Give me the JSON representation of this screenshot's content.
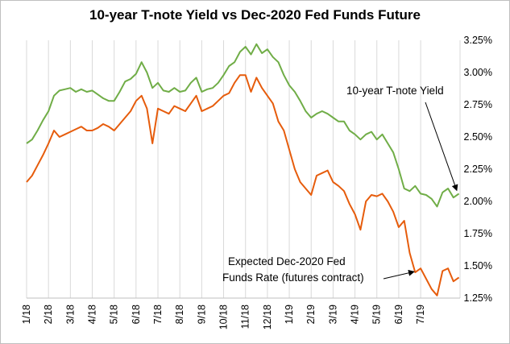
{
  "chart_data": {
    "type": "line",
    "title": "10-year T-note Yield vs Dec-2020 Fed Funds Future",
    "xlabel": "",
    "ylabel": "",
    "x_tick_labels": [
      "1/18",
      "2/18",
      "3/18",
      "4/18",
      "5/18",
      "6/18",
      "7/18",
      "8/18",
      "9/18",
      "10/18",
      "11/18",
      "12/18",
      "1/19",
      "2/19",
      "3/19",
      "4/19",
      "5/19",
      "6/19",
      "7/19"
    ],
    "y_tick_labels": [
      "1.25%",
      "1.50%",
      "1.75%",
      "2.00%",
      "2.25%",
      "2.50%",
      "2.75%",
      "3.00%",
      "3.25%"
    ],
    "ylim": [
      1.25,
      3.25
    ],
    "y_axis_position": "right",
    "grid": "vertical",
    "colors": {
      "series_10y": "#70ad47",
      "series_ff": "#e65c0c",
      "grid": "#d9d9d9"
    },
    "annotations": [
      {
        "text": "10-year T-note Yield",
        "arrow_to_series": "10-year T-note Yield",
        "arrow_to_x": 19.65
      },
      {
        "text_line1": "Expected Dec-2020 Fed",
        "text_line2": "Funds Rate (futures contract)",
        "arrow_to_series": "Expected Dec-2020 Fed Funds Rate (futures contract)",
        "arrow_to_x": 17.7
      }
    ],
    "series": [
      {
        "name": "10-year T-note Yield",
        "x": [
          0,
          0.25,
          0.5,
          0.75,
          1,
          1.25,
          1.5,
          1.75,
          2,
          2.25,
          2.5,
          2.75,
          3,
          3.25,
          3.5,
          3.75,
          4,
          4.25,
          4.5,
          4.75,
          5,
          5.25,
          5.5,
          5.75,
          6,
          6.25,
          6.5,
          6.75,
          7,
          7.25,
          7.5,
          7.75,
          8,
          8.25,
          8.5,
          8.75,
          9,
          9.25,
          9.5,
          9.75,
          10,
          10.25,
          10.5,
          10.75,
          11,
          11.25,
          11.5,
          11.75,
          12,
          12.25,
          12.5,
          12.75,
          13,
          13.25,
          13.5,
          13.75,
          14,
          14.25,
          14.5,
          14.75,
          15,
          15.25,
          15.5,
          15.75,
          16,
          16.25,
          16.5,
          16.75,
          17,
          17.25,
          17.5,
          17.75,
          18,
          18.25,
          18.5,
          18.75,
          19,
          19.25,
          19.5,
          19.75
        ],
        "values": [
          2.45,
          2.48,
          2.55,
          2.63,
          2.7,
          2.82,
          2.86,
          2.87,
          2.88,
          2.85,
          2.87,
          2.85,
          2.86,
          2.83,
          2.8,
          2.78,
          2.78,
          2.85,
          2.93,
          2.95,
          2.99,
          3.08,
          3.0,
          2.88,
          2.92,
          2.86,
          2.85,
          2.88,
          2.85,
          2.86,
          2.92,
          2.96,
          2.85,
          2.87,
          2.88,
          2.92,
          2.98,
          3.05,
          3.08,
          3.16,
          3.2,
          3.14,
          3.22,
          3.15,
          3.18,
          3.12,
          3.08,
          2.98,
          2.9,
          2.85,
          2.78,
          2.7,
          2.65,
          2.68,
          2.7,
          2.68,
          2.65,
          2.62,
          2.62,
          2.55,
          2.52,
          2.48,
          2.52,
          2.54,
          2.48,
          2.52,
          2.45,
          2.38,
          2.25,
          2.1,
          2.08,
          2.12,
          2.06,
          2.05,
          2.02,
          1.96,
          2.07,
          2.1,
          2.03,
          2.06
        ]
      },
      {
        "name": "Expected Dec-2020 Fed Funds Rate (futures contract)",
        "x": [
          0,
          0.25,
          0.5,
          0.75,
          1,
          1.25,
          1.5,
          1.75,
          2,
          2.25,
          2.5,
          2.75,
          3,
          3.25,
          3.5,
          3.75,
          4,
          4.25,
          4.5,
          4.75,
          5,
          5.25,
          5.5,
          5.75,
          6,
          6.25,
          6.5,
          6.75,
          7,
          7.25,
          7.5,
          7.75,
          8,
          8.25,
          8.5,
          8.75,
          9,
          9.25,
          9.5,
          9.75,
          10,
          10.25,
          10.5,
          10.75,
          11,
          11.25,
          11.5,
          11.75,
          12,
          12.25,
          12.5,
          12.75,
          13,
          13.25,
          13.5,
          13.75,
          14,
          14.25,
          14.5,
          14.75,
          15,
          15.25,
          15.5,
          15.75,
          16,
          16.25,
          16.5,
          16.75,
          17,
          17.25,
          17.5,
          17.75,
          18,
          18.25,
          18.5,
          18.75,
          19,
          19.25,
          19.5,
          19.75
        ],
        "values": [
          2.15,
          2.2,
          2.28,
          2.36,
          2.45,
          2.55,
          2.5,
          2.52,
          2.54,
          2.56,
          2.58,
          2.55,
          2.55,
          2.57,
          2.6,
          2.58,
          2.55,
          2.6,
          2.65,
          2.7,
          2.78,
          2.82,
          2.72,
          2.45,
          2.72,
          2.7,
          2.68,
          2.74,
          2.72,
          2.7,
          2.76,
          2.82,
          2.7,
          2.72,
          2.74,
          2.78,
          2.82,
          2.84,
          2.92,
          2.98,
          2.98,
          2.85,
          2.96,
          2.88,
          2.82,
          2.76,
          2.62,
          2.55,
          2.4,
          2.25,
          2.15,
          2.1,
          2.05,
          2.2,
          2.22,
          2.24,
          2.15,
          2.12,
          2.08,
          1.98,
          1.9,
          1.78,
          2.0,
          2.05,
          2.04,
          2.06,
          2.0,
          1.92,
          1.8,
          1.85,
          1.6,
          1.45,
          1.48,
          1.4,
          1.32,
          1.27,
          1.46,
          1.48,
          1.38,
          1.41
        ]
      }
    ]
  }
}
